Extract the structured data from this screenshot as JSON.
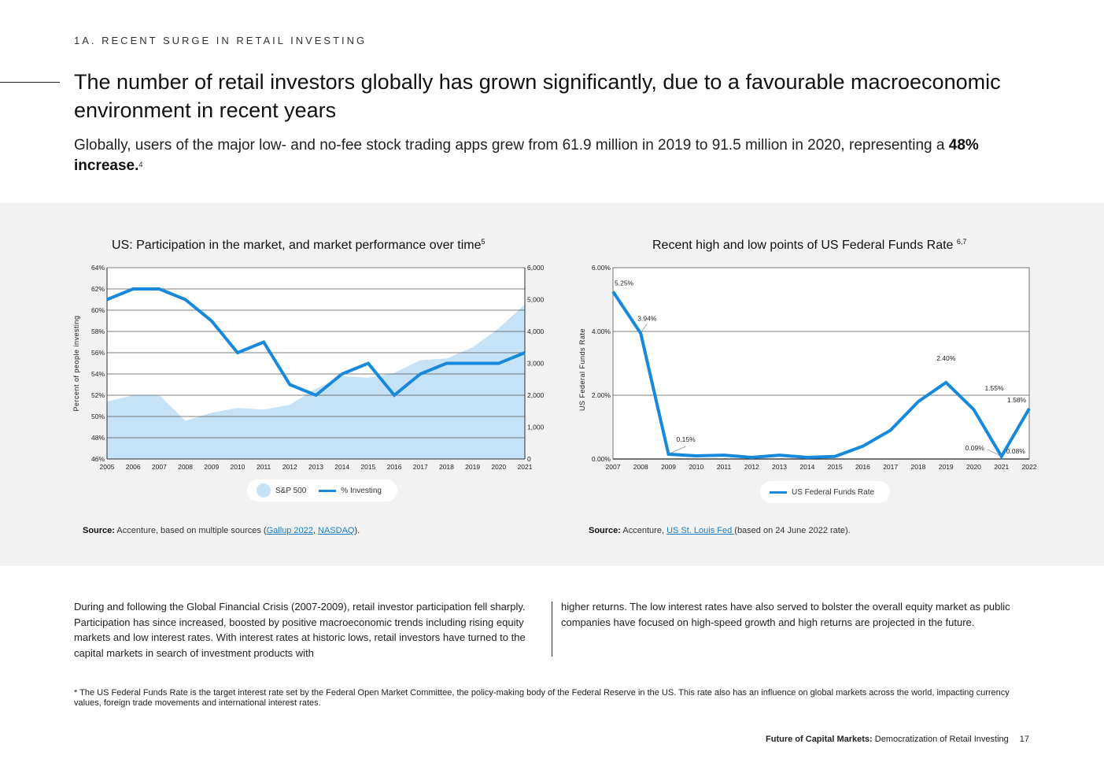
{
  "header": {
    "section_label": "1A. RECENT SURGE IN RETAIL INVESTING",
    "headline": "The number of retail investors globally has grown significantly, due to a favourable macroeconomic environment in recent years",
    "subhead_prefix": "Globally, users of the major low- and no-fee stock trading apps grew from 61.9 million in 2019 to 91.5 million in 2020, representing a ",
    "subhead_bold": "48% increase.",
    "subhead_sup": "4"
  },
  "colors": {
    "line": "#1789dc",
    "area": "#c6e2f7",
    "band": "#f2f2f2",
    "link": "#1a7cc9"
  },
  "chart_data": [
    {
      "type": "line",
      "title": "US: Participation in the market, and market performance over time",
      "title_sup": "5",
      "x": [
        "2005",
        "2006",
        "2007",
        "2008",
        "2009",
        "2010",
        "2011",
        "2012",
        "2013",
        "2014",
        "2015",
        "2016",
        "2017",
        "2018",
        "2019",
        "2020",
        "2021"
      ],
      "ylabel": "Percent of people investing",
      "ylim": [
        46,
        64
      ],
      "y_ticks": [
        "64%",
        "62%",
        "60%",
        "58%",
        "56%",
        "54%",
        "52%",
        "50%",
        "48%",
        "46%"
      ],
      "y2lim": [
        0,
        6000
      ],
      "y2_ticks": [
        "6,000",
        "5,000",
        "4,000",
        "3,000",
        "2,000",
        "1,000",
        "0"
      ],
      "grid": true,
      "legend_position": "bottom-center",
      "series": [
        {
          "name": "S&P 500",
          "kind": "area",
          "axis": "right",
          "values": [
            1800,
            2000,
            2000,
            1200,
            1450,
            1600,
            1550,
            1700,
            2200,
            2600,
            2550,
            2700,
            3100,
            3150,
            3500,
            4100,
            4850
          ]
        },
        {
          "name": "% Investing",
          "kind": "line",
          "axis": "left",
          "values": [
            61,
            62,
            62,
            61,
            59,
            56,
            57,
            53,
            52,
            54,
            55,
            52,
            54,
            55,
            55,
            55,
            56
          ]
        }
      ],
      "source_label": "Source:",
      "source_text": " Accenture, based on multiple sources (",
      "source_link1": "Gallup 2022",
      "source_sep": ", ",
      "source_link2": "NASDAQ",
      "source_end": ")."
    },
    {
      "type": "line",
      "title": "Recent high and low points of US Federal Funds Rate ",
      "title_sup": "6,7",
      "x": [
        "2007",
        "2008",
        "2009",
        "2010",
        "2011",
        "2012",
        "2013",
        "2014",
        "2015",
        "2016",
        "2017",
        "2018",
        "2019",
        "2020",
        "2021",
        "2022"
      ],
      "ylabel": "US Federal Funds Rate",
      "ylim": [
        0,
        6
      ],
      "y_ticks": [
        "6.00%",
        "4.00%",
        "2.00%",
        "0.00%"
      ],
      "grid": true,
      "legend_position": "bottom-center",
      "series": [
        {
          "name": "US Federal Funds Rate",
          "values": [
            5.25,
            3.94,
            0.15,
            0.1,
            0.12,
            0.05,
            0.12,
            0.05,
            0.08,
            0.4,
            0.9,
            1.8,
            2.4,
            1.55,
            0.08,
            1.58
          ]
        }
      ],
      "annotations": [
        {
          "x": "2007",
          "label": "5.25%"
        },
        {
          "x": "2008",
          "label": "3.94%"
        },
        {
          "x": "2009",
          "label": "0.15%"
        },
        {
          "x": "2019",
          "label": "2.40%"
        },
        {
          "x": "2020",
          "label": "1.55%"
        },
        {
          "x": "2021",
          "label": "0.09%"
        },
        {
          "x": "2021",
          "label": "0.08%"
        },
        {
          "x": "2022",
          "label": "1.58%"
        }
      ],
      "source_label": "Source:",
      "source_text": " Accenture, ",
      "source_link1": "US St. Louis Fed ",
      "source_end": "(based on 24 June 2022 rate)."
    }
  ],
  "body": {
    "col1": "During and following the Global Financial Crisis (2007-2009), retail investor participation fell sharply. Participation has since increased, boosted by positive macroeconomic trends including rising equity markets and low interest rates. With interest rates at historic lows, retail investors have turned to the capital markets in search of investment products with",
    "col2": "higher returns. The low interest rates have also served to bolster the overall equity market as public companies have focused on high-speed growth and high returns are projected in the future."
  },
  "footnote": "* The US Federal Funds Rate is the target interest rate set by the Federal Open Market Committee, the policy-making body of the Federal Reserve in the US. This rate also has an influence on global markets across the world, impacting currency values, foreign trade movements and international interest rates.",
  "footer": {
    "title_bold": "Future of Capital Markets:",
    "title_rest": " Democratization of Retail Investing",
    "page": "17"
  }
}
